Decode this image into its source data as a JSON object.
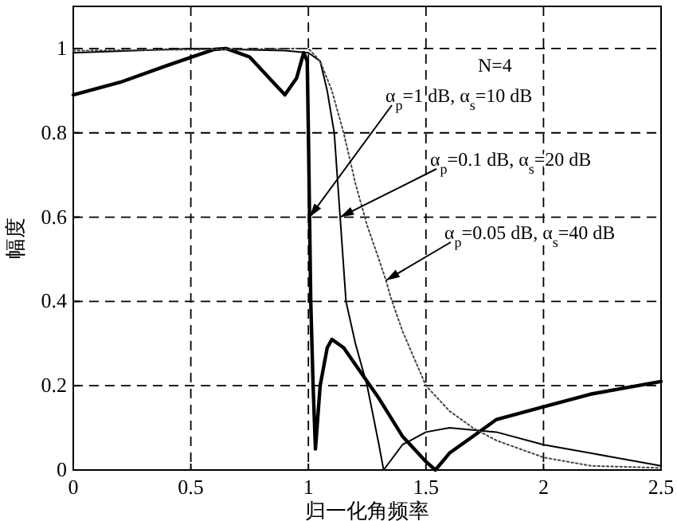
{
  "chart_data": {
    "type": "line",
    "xlabel": "归一化角频率",
    "ylabel": "幅度",
    "x": [
      0,
      0.2,
      0.4,
      0.6,
      0.65,
      0.75,
      0.85,
      0.9,
      0.95,
      0.98,
      0.995,
      1.0,
      1.005,
      1.01,
      1.02,
      1.03,
      1.05,
      1.08,
      1.1,
      1.15,
      1.2,
      1.3,
      1.4,
      1.5,
      1.54,
      1.6,
      1.7,
      1.8,
      2.0,
      2.2,
      2.5
    ],
    "series": [
      {
        "color": "#000000",
        "line_style": "solid",
        "values": [
          0.89,
          0.92,
          0.96,
          0.998,
          1.0,
          0.98,
          0.92,
          0.89,
          0.93,
          0.99,
          0.97,
          0.8,
          0.6,
          0.4,
          0.2,
          0.05,
          0.2,
          0.29,
          0.31,
          0.29,
          0.25,
          0.17,
          0.08,
          0.02,
          0,
          0.04,
          0.08,
          0.12,
          0.15,
          0.18,
          0.21
        ]
      },
      {
        "color": "#000000",
        "line_style": "solid",
        "x": [
          0,
          0.5,
          0.9,
          1.0,
          1.05,
          1.08,
          1.11,
          1.135,
          1.16,
          1.2,
          1.25,
          1.3,
          1.32,
          1.4,
          1.5,
          1.6,
          1.8,
          2.0,
          2.2,
          2.5
        ],
        "values": [
          0.99,
          1.0,
          0.995,
          0.99,
          0.97,
          0.9,
          0.8,
          0.6,
          0.4,
          0.3,
          0.2,
          0.06,
          0,
          0.06,
          0.09,
          0.1,
          0.09,
          0.06,
          0.04,
          0.01
        ]
      },
      {
        "color": "#444444",
        "line_style": "dotted",
        "x": [
          0,
          1.0,
          1.05,
          1.1,
          1.15,
          1.2,
          1.25,
          1.3,
          1.33,
          1.35,
          1.4,
          1.5,
          1.6,
          1.7,
          1.8,
          2.0,
          2.2,
          2.5
        ],
        "values": [
          0.995,
          1.0,
          0.97,
          0.9,
          0.8,
          0.68,
          0.58,
          0.5,
          0.45,
          0.41,
          0.33,
          0.2,
          0.14,
          0.1,
          0.07,
          0.03,
          0.01,
          0.005
        ]
      }
    ],
    "annotations": [
      "N=4",
      {
        "text": "α$_{p}$=1 dB, α$_{s}$=10 dB",
        "x": 1.005,
        "y": 0.6
      },
      {
        "text": "α$_{p}$=0.1 dB, α$_{s}$=20 dB",
        "x": 1.135,
        "y": 0.6
      },
      {
        "text": "α$_{p}$=0.05 dB, α$_{s}$=40 dB",
        "x": 1.33,
        "y": 0.45
      }
    ],
    "xlim": [
      0,
      2.5
    ],
    "ylim": [
      0,
      1.1
    ],
    "xticks": [
      0,
      0.5,
      1,
      1.5,
      2,
      2.5
    ],
    "yticks": [
      0,
      0.2,
      0.4,
      0.6,
      0.8,
      1
    ],
    "grid": true
  }
}
